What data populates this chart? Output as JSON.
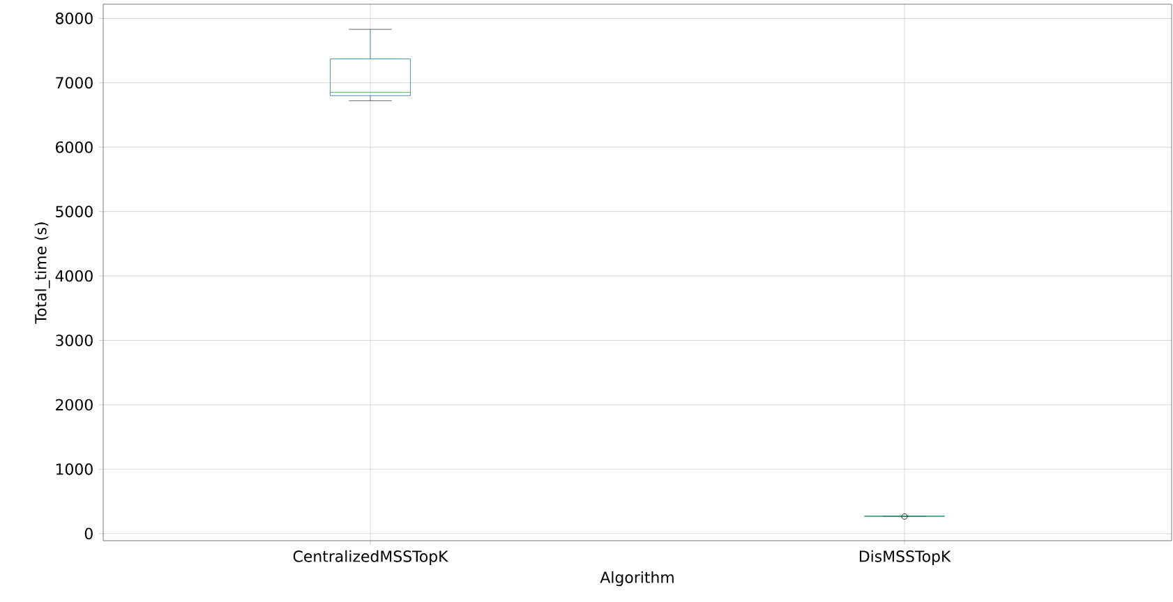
{
  "chart_data": {
    "type": "box",
    "xlabel": "Algorithm",
    "ylabel": "Total_time (s)",
    "categories": [
      "CentralizedMSSTopK",
      "DisMSSTopK"
    ],
    "boxes": [
      {
        "low": 6720,
        "q1": 6800,
        "median": 6850,
        "q3": 7370,
        "high": 7830
      },
      {
        "low": 270,
        "q1": 270,
        "median": 270,
        "q3": 270,
        "high": 270,
        "outliers": [
          265
        ]
      }
    ],
    "color": "#1f77b4",
    "ylim": [
      -110,
      8220
    ],
    "yticks": [
      0,
      1000,
      2000,
      3000,
      4000,
      5000,
      6000,
      7000,
      8000
    ],
    "grid": true
  }
}
